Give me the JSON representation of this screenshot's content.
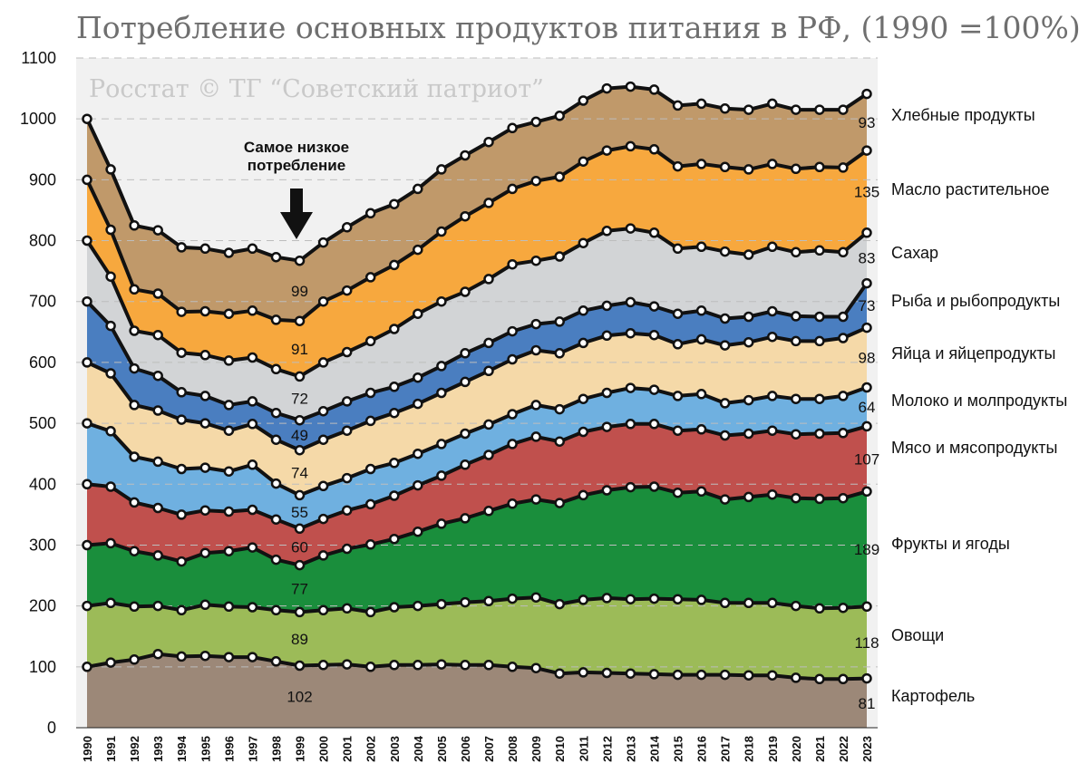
{
  "chart_data": {
    "type": "area",
    "stacked": true,
    "title": "Потребление основных продуктов питания в РФ, (1990 =100%)",
    "watermark": "Росстат © ТГ “Советский патриот”",
    "annotation": [
      "Самое низкое",
      "потребление"
    ],
    "ylim": [
      0,
      1100
    ],
    "yticks": [
      0,
      100,
      200,
      300,
      400,
      500,
      600,
      700,
      800,
      900,
      1000,
      1100
    ],
    "x": [
      "1990",
      "1991",
      "1992",
      "1993",
      "1994",
      "1995",
      "1996",
      "1997",
      "1998",
      "1999",
      "2000",
      "2001",
      "2002",
      "2003",
      "2004",
      "2005",
      "2006",
      "2007",
      "2008",
      "2009",
      "2010",
      "2011",
      "2012",
      "2013",
      "2014",
      "2015",
      "2016",
      "2017",
      "2018",
      "2019",
      "2020",
      "2021",
      "2022",
      "2023"
    ],
    "series": [
      {
        "name": "Картофель",
        "color": "#9c8878",
        "cumulative": [
          100,
          107,
          112,
          121,
          117,
          118,
          116,
          116,
          109,
          102,
          103,
          104,
          100,
          103,
          103,
          104,
          103,
          103,
          100,
          98,
          89,
          91,
          90,
          89,
          88,
          87,
          87,
          87,
          86,
          86,
          82,
          80,
          80,
          81
        ],
        "labels": {
          "1999": "102",
          "2023": "81"
        }
      },
      {
        "name": "Овощи",
        "color": "#9cbb58",
        "cumulative": [
          200,
          205,
          199,
          200,
          193,
          202,
          199,
          198,
          193,
          190,
          193,
          196,
          190,
          198,
          200,
          203,
          206,
          208,
          212,
          214,
          203,
          210,
          213,
          211,
          212,
          211,
          210,
          205,
          205,
          205,
          200,
          196,
          197,
          199
        ],
        "labels": {
          "1999": "89",
          "2023": "118"
        }
      },
      {
        "name": "Фрукты и ягоды",
        "color": "#1a8e3c",
        "cumulative": [
          300,
          303,
          290,
          283,
          273,
          287,
          290,
          296,
          276,
          267,
          283,
          294,
          301,
          310,
          322,
          335,
          344,
          356,
          368,
          375,
          369,
          382,
          390,
          395,
          396,
          386,
          388,
          375,
          379,
          383,
          377,
          376,
          377,
          388
        ],
        "labels": {
          "1999": "77",
          "2023": "189"
        }
      },
      {
        "name": "Мясо и мясопродукты",
        "color": "#c0504d",
        "cumulative": [
          400,
          396,
          370,
          361,
          350,
          357,
          355,
          358,
          342,
          327,
          343,
          357,
          367,
          381,
          398,
          414,
          432,
          448,
          466,
          478,
          470,
          486,
          494,
          499,
          499,
          488,
          490,
          480,
          483,
          488,
          482,
          483,
          484,
          495
        ],
        "labels": {
          "1999": "60",
          "2023": "107"
        }
      },
      {
        "name": "Молоко и молпродукты",
        "color": "#6fb0e0",
        "cumulative": [
          500,
          487,
          445,
          437,
          425,
          427,
          421,
          432,
          401,
          382,
          397,
          410,
          425,
          435,
          450,
          466,
          483,
          498,
          515,
          530,
          523,
          540,
          550,
          558,
          555,
          545,
          548,
          533,
          538,
          545,
          540,
          540,
          545,
          559
        ],
        "labels": {
          "1999": "55",
          "2023": "64"
        }
      },
      {
        "name": "Яйца и яйцепродукты",
        "color": "#f5d9a8",
        "cumulative": [
          600,
          582,
          530,
          521,
          506,
          500,
          488,
          499,
          473,
          456,
          473,
          488,
          504,
          517,
          532,
          550,
          568,
          586,
          605,
          620,
          615,
          632,
          644,
          648,
          645,
          630,
          638,
          628,
          633,
          642,
          635,
          635,
          640,
          657
        ],
        "labels": {
          "1999": "74",
          "2023": "98"
        }
      },
      {
        "name": "Рыба и рыбопродукты",
        "color": "#4a7ec0",
        "cumulative": [
          700,
          660,
          590,
          578,
          551,
          545,
          530,
          536,
          517,
          505,
          520,
          536,
          550,
          560,
          575,
          594,
          615,
          632,
          651,
          663,
          667,
          685,
          693,
          699,
          692,
          680,
          685,
          672,
          675,
          684,
          676,
          675,
          675,
          730
        ],
        "labels": {
          "1999": "49",
          "2023": "73"
        }
      },
      {
        "name": "Сахар",
        "color": "#d2d4d6",
        "cumulative": [
          800,
          741,
          652,
          645,
          616,
          612,
          603,
          608,
          589,
          577,
          600,
          617,
          635,
          655,
          680,
          700,
          716,
          737,
          761,
          767,
          774,
          796,
          816,
          820,
          813,
          787,
          790,
          782,
          777,
          790,
          781,
          784,
          781,
          813
        ],
        "labels": {
          "1999": "72",
          "2023": "83"
        }
      },
      {
        "name": "Масло растительное",
        "color": "#f7a83e",
        "cumulative": [
          900,
          818,
          720,
          713,
          683,
          684,
          680,
          685,
          670,
          668,
          700,
          718,
          740,
          760,
          785,
          815,
          840,
          862,
          885,
          898,
          905,
          930,
          948,
          955,
          950,
          922,
          926,
          921,
          917,
          926,
          918,
          921,
          920,
          948
        ],
        "labels": {
          "1999": "91",
          "2023": "135"
        }
      },
      {
        "name": "Хлебные продукты",
        "color": "#c0996a",
        "cumulative": [
          1000,
          917,
          825,
          817,
          789,
          787,
          780,
          787,
          773,
          767,
          797,
          822,
          845,
          860,
          885,
          917,
          940,
          962,
          985,
          995,
          1005,
          1030,
          1050,
          1053,
          1048,
          1022,
          1025,
          1017,
          1015,
          1025,
          1015,
          1015,
          1015,
          1041
        ],
        "labels": {
          "1999": "99",
          "2023": "93"
        }
      }
    ]
  }
}
